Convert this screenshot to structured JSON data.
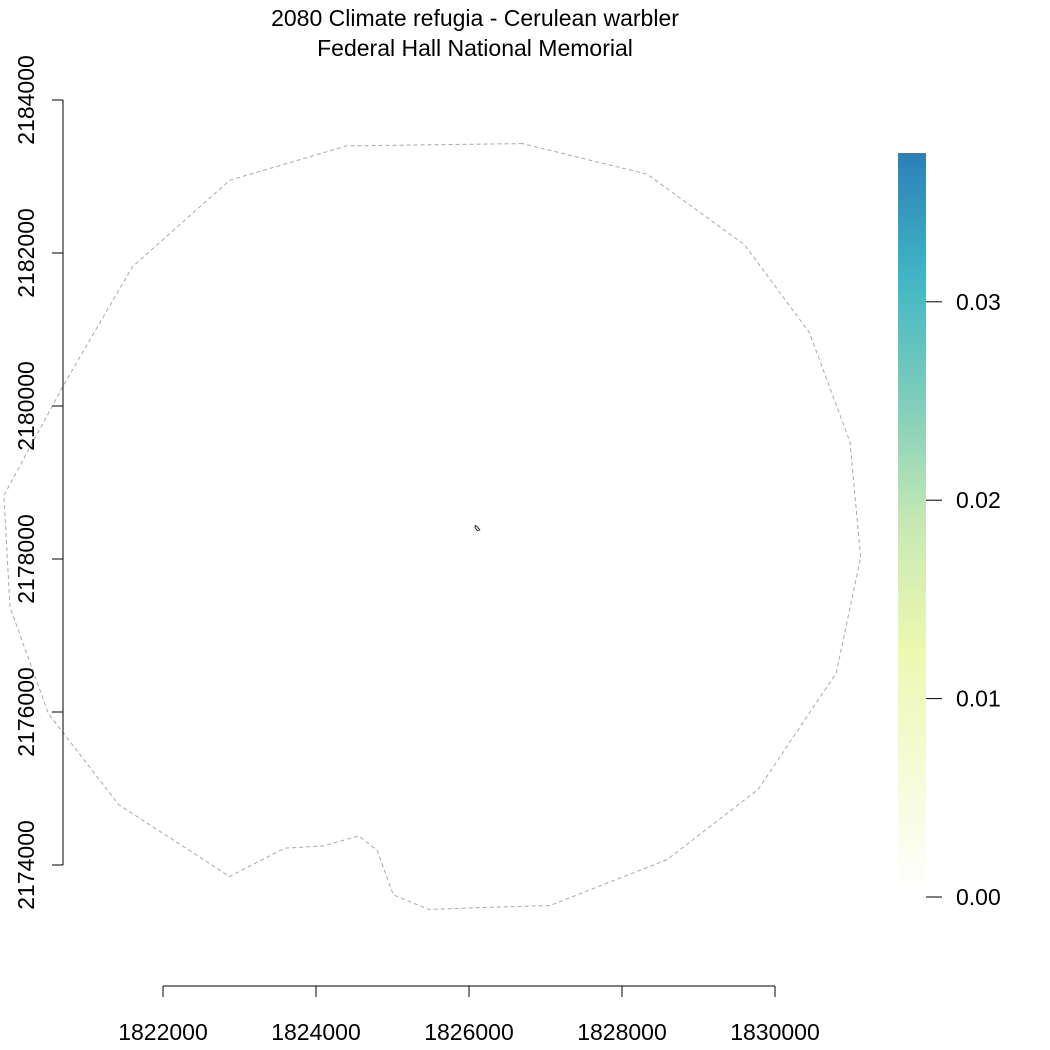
{
  "title": {
    "line1": "2080 Climate refugia - Cerulean warbler",
    "line2": "Federal Hall National Memorial"
  },
  "chart_data": {
    "type": "map",
    "x_axis": {
      "ticks": [
        1822000,
        1824000,
        1826000,
        1828000,
        1830000
      ],
      "tick_labels": [
        "1822000",
        "1824000",
        "1826000",
        "1828000",
        "1830000"
      ]
    },
    "y_axis": {
      "ticks": [
        2174000,
        2176000,
        2178000,
        2180000,
        2182000,
        2184000
      ],
      "tick_labels": [
        "2174000",
        "2176000",
        "2178000",
        "2180000",
        "2182000",
        "2184000"
      ]
    },
    "legend": {
      "type": "colorbar",
      "placement": "right",
      "range": [
        0,
        0.0375
      ],
      "ticks": [
        0.0,
        0.01,
        0.02,
        0.03
      ],
      "tick_labels": [
        "0.00",
        "0.01",
        "0.02",
        "0.03"
      ],
      "colors": [
        "#ffffff",
        "#f6fbd7",
        "#edf8b1",
        "#c7e9b4",
        "#7fcdbb",
        "#41b6c4",
        "#2c7fb8"
      ]
    },
    "layers": [
      {
        "name": "buffer",
        "style": "dashed",
        "color": "#a9a9a9",
        "coords": [
          [
            1826700,
            2183430
          ],
          [
            1824400,
            2183400
          ],
          [
            1822870,
            2182950
          ],
          [
            1821600,
            2181820
          ],
          [
            1820700,
            2180270
          ],
          [
            1819920,
            2178830
          ],
          [
            1820000,
            2177370
          ],
          [
            1820500,
            2175980
          ],
          [
            1821420,
            2174790
          ],
          [
            1822870,
            2173850
          ],
          [
            1823590,
            2174220
          ],
          [
            1824100,
            2174250
          ],
          [
            1824560,
            2174380
          ],
          [
            1824800,
            2174190
          ],
          [
            1825010,
            2173610
          ],
          [
            1825470,
            2173420
          ],
          [
            1826060,
            2173440
          ],
          [
            1827060,
            2173470
          ],
          [
            1828590,
            2174070
          ],
          [
            1829780,
            2174990
          ],
          [
            1830800,
            2176510
          ],
          [
            1831120,
            2178020
          ],
          [
            1830980,
            2179530
          ],
          [
            1830450,
            2180960
          ],
          [
            1829600,
            2182110
          ],
          [
            1828330,
            2183030
          ],
          [
            1826700,
            2183430
          ]
        ]
      },
      {
        "name": "park",
        "style": "solid",
        "color": "#333333",
        "coords": [
          [
            1826080,
            2178440
          ],
          [
            1826110,
            2178420
          ],
          [
            1826140,
            2178380
          ],
          [
            1826110,
            2178370
          ],
          [
            1826080,
            2178410
          ],
          [
            1826080,
            2178440
          ]
        ]
      }
    ]
  }
}
